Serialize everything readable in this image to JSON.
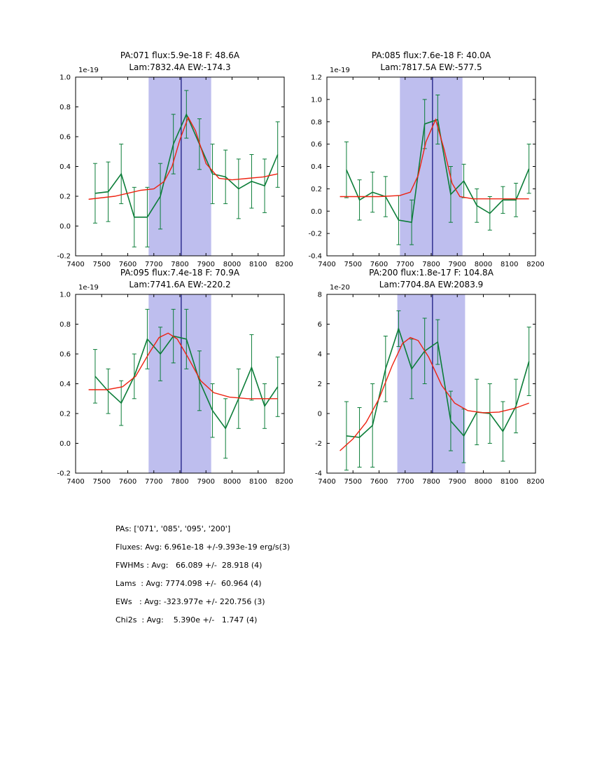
{
  "figure": {
    "bg": "#ffffff",
    "colors": {
      "data": "#0b7d38",
      "fit": "#ee2211",
      "band": "rgba(40,40,200,0.30)",
      "vline": "#1a1a80",
      "axis": "#000000",
      "text": "#000000"
    }
  },
  "summary": {
    "lines": [
      "PAs: ['071', '085', '095', '200']",
      "Fluxes: Avg: 6.961e-18 +/-9.393e-19 erg/s(3)",
      "FWHMs : Avg:   66.089 +/-  28.918 (4)",
      "Lams  : Avg: 7774.098 +/-  60.964 (4)",
      "EWs   : Avg: -323.977e +/- 220.756 (3)",
      "Chi2s  : Avg:    5.390e +/-   1.747 (4)"
    ]
  },
  "chart_data": [
    {
      "name": "PA071",
      "type": "line",
      "title_line1": "PA:071 flux:5.9e-18 F: 48.6A",
      "title_line2": "Lam:7832.4A EW:-174.3",
      "y_offset_label": "1e-19",
      "xlim": [
        7400,
        8200
      ],
      "ylim": [
        -0.2,
        1.0
      ],
      "xticks": [
        7400,
        7500,
        7600,
        7700,
        7800,
        7900,
        8000,
        8100,
        8200
      ],
      "xtick_labels": [
        "7400",
        "7500",
        "7600",
        "7700",
        "7800",
        "7900",
        "8000",
        "8100",
        "8200"
      ],
      "yticks": [
        -0.2,
        0.0,
        0.2,
        0.4,
        0.6,
        0.8,
        1.0
      ],
      "ytick_labels": [
        "-0.2",
        "0.0",
        "0.2",
        "0.4",
        "0.6",
        "0.8",
        "1.0"
      ],
      "band": [
        7680,
        7920
      ],
      "vline": 7805,
      "x": [
        7475,
        7525,
        7575,
        7625,
        7675,
        7725,
        7775,
        7825,
        7875,
        7925,
        7975,
        8025,
        8075,
        8125,
        8175
      ],
      "y": [
        0.22,
        0.23,
        0.35,
        0.06,
        0.06,
        0.2,
        0.55,
        0.75,
        0.55,
        0.35,
        0.33,
        0.25,
        0.3,
        0.27,
        0.48
      ],
      "yerr": [
        0.2,
        0.2,
        0.2,
        0.2,
        0.2,
        0.22,
        0.2,
        0.16,
        0.17,
        0.2,
        0.18,
        0.2,
        0.18,
        0.18,
        0.22
      ],
      "fit_x": [
        7450,
        7550,
        7650,
        7700,
        7740,
        7770,
        7800,
        7832,
        7860,
        7900,
        7950,
        8000,
        8060,
        8120,
        8175
      ],
      "fit_y": [
        0.18,
        0.2,
        0.24,
        0.25,
        0.3,
        0.4,
        0.58,
        0.73,
        0.64,
        0.42,
        0.32,
        0.31,
        0.32,
        0.33,
        0.35
      ]
    },
    {
      "name": "PA085",
      "type": "line",
      "title_line1": "PA:085 flux:7.6e-18 F: 40.0A",
      "title_line2": "Lam:7817.5A EW:-577.5",
      "y_offset_label": "1e-19",
      "xlim": [
        7400,
        8200
      ],
      "ylim": [
        -0.4,
        1.2
      ],
      "xticks": [
        7400,
        7500,
        7600,
        7700,
        7800,
        7900,
        8000,
        8100,
        8200
      ],
      "xtick_labels": [
        "7400",
        "7500",
        "7600",
        "7700",
        "7800",
        "7900",
        "8000",
        "8100",
        "8200"
      ],
      "yticks": [
        -0.4,
        -0.2,
        0.0,
        0.2,
        0.4,
        0.6,
        0.8,
        1.0,
        1.2
      ],
      "ytick_labels": [
        "-0.4",
        "-0.2",
        "0.0",
        "0.2",
        "0.4",
        "0.6",
        "0.8",
        "1.0",
        "1.2"
      ],
      "band": [
        7680,
        7920
      ],
      "vline": 7805,
      "x": [
        7475,
        7525,
        7575,
        7625,
        7675,
        7725,
        7775,
        7825,
        7875,
        7925,
        7975,
        8025,
        8075,
        8125,
        8175
      ],
      "y": [
        0.37,
        0.1,
        0.17,
        0.13,
        -0.08,
        -0.1,
        0.78,
        0.82,
        0.15,
        0.27,
        0.05,
        -0.02,
        0.1,
        0.1,
        0.38
      ],
      "yerr": [
        0.25,
        0.18,
        0.18,
        0.18,
        0.22,
        0.2,
        0.22,
        0.22,
        0.25,
        0.15,
        0.15,
        0.15,
        0.12,
        0.15,
        0.22
      ],
      "fit_x": [
        7450,
        7600,
        7680,
        7720,
        7750,
        7780,
        7817,
        7850,
        7880,
        7910,
        7960,
        8050,
        8175
      ],
      "fit_y": [
        0.13,
        0.13,
        0.14,
        0.17,
        0.32,
        0.62,
        0.82,
        0.55,
        0.25,
        0.13,
        0.11,
        0.11,
        0.11
      ]
    },
    {
      "name": "PA095",
      "type": "line",
      "title_line1": "PA:095 flux:7.4e-18 F: 70.9A",
      "title_line2": "Lam:7741.6A EW:-220.2",
      "y_offset_label": "1e-19",
      "xlim": [
        7400,
        8200
      ],
      "ylim": [
        -0.2,
        1.0
      ],
      "xticks": [
        7400,
        7500,
        7600,
        7700,
        7800,
        7900,
        8000,
        8100,
        8200
      ],
      "xtick_labels": [
        "7400",
        "7500",
        "7600",
        "7700",
        "7800",
        "7900",
        "8000",
        "8100",
        "8200"
      ],
      "yticks": [
        -0.2,
        0.0,
        0.2,
        0.4,
        0.6,
        0.8,
        1.0
      ],
      "ytick_labels": [
        "-0.2",
        "0.0",
        "0.2",
        "0.4",
        "0.6",
        "0.8",
        "1.0"
      ],
      "band": [
        7680,
        7920
      ],
      "vline": 7805,
      "x": [
        7475,
        7525,
        7575,
        7625,
        7675,
        7725,
        7775,
        7825,
        7875,
        7925,
        7975,
        8025,
        8075,
        8125,
        8175
      ],
      "y": [
        0.45,
        0.35,
        0.27,
        0.45,
        0.7,
        0.6,
        0.72,
        0.7,
        0.42,
        0.22,
        0.1,
        0.3,
        0.51,
        0.25,
        0.38
      ],
      "yerr": [
        0.18,
        0.15,
        0.15,
        0.15,
        0.2,
        0.18,
        0.18,
        0.2,
        0.2,
        0.18,
        0.2,
        0.2,
        0.22,
        0.15,
        0.2
      ],
      "fit_x": [
        7450,
        7520,
        7580,
        7630,
        7680,
        7720,
        7755,
        7790,
        7830,
        7880,
        7930,
        7990,
        8060,
        8120,
        8175
      ],
      "fit_y": [
        0.36,
        0.36,
        0.38,
        0.45,
        0.6,
        0.71,
        0.74,
        0.7,
        0.58,
        0.42,
        0.34,
        0.31,
        0.3,
        0.3,
        0.3
      ]
    },
    {
      "name": "PA200",
      "type": "line",
      "title_line1": "PA:200 flux:1.8e-17 F: 104.8A",
      "title_line2": "Lam:7704.8A EW:2083.9",
      "y_offset_label": "1e-20",
      "xlim": [
        7400,
        8200
      ],
      "ylim": [
        -4,
        8
      ],
      "xticks": [
        7400,
        7500,
        7600,
        7700,
        7800,
        7900,
        8000,
        8100,
        8200
      ],
      "xtick_labels": [
        "7400",
        "7500",
        "7600",
        "7700",
        "7800",
        "7900",
        "8000",
        "8100",
        "8200"
      ],
      "yticks": [
        -4,
        -2,
        0,
        2,
        4,
        6,
        8
      ],
      "ytick_labels": [
        "-4",
        "-2",
        "0",
        "2",
        "4",
        "6",
        "8"
      ],
      "band": [
        7670,
        7930
      ],
      "vline": 7805,
      "x": [
        7475,
        7525,
        7575,
        7625,
        7675,
        7725,
        7775,
        7825,
        7875,
        7925,
        7975,
        8025,
        8075,
        8125,
        8175
      ],
      "y": [
        -1.5,
        -1.6,
        -0.8,
        3.0,
        5.7,
        3.0,
        4.2,
        4.8,
        -0.5,
        -1.5,
        0.1,
        0.0,
        -1.2,
        0.5,
        3.5
      ],
      "yerr": [
        2.3,
        2.0,
        2.8,
        2.2,
        1.2,
        2.0,
        2.2,
        1.5,
        2.0,
        1.8,
        2.2,
        2.0,
        2.0,
        1.8,
        2.3
      ],
      "fit_x": [
        7450,
        7500,
        7550,
        7600,
        7650,
        7690,
        7720,
        7750,
        7790,
        7840,
        7890,
        7940,
        8000,
        8060,
        8120,
        8175
      ],
      "fit_y": [
        -2.5,
        -1.7,
        -0.6,
        1.0,
        3.2,
        4.7,
        5.1,
        4.9,
        3.8,
        1.9,
        0.7,
        0.2,
        0.05,
        0.1,
        0.35,
        0.7
      ]
    }
  ]
}
